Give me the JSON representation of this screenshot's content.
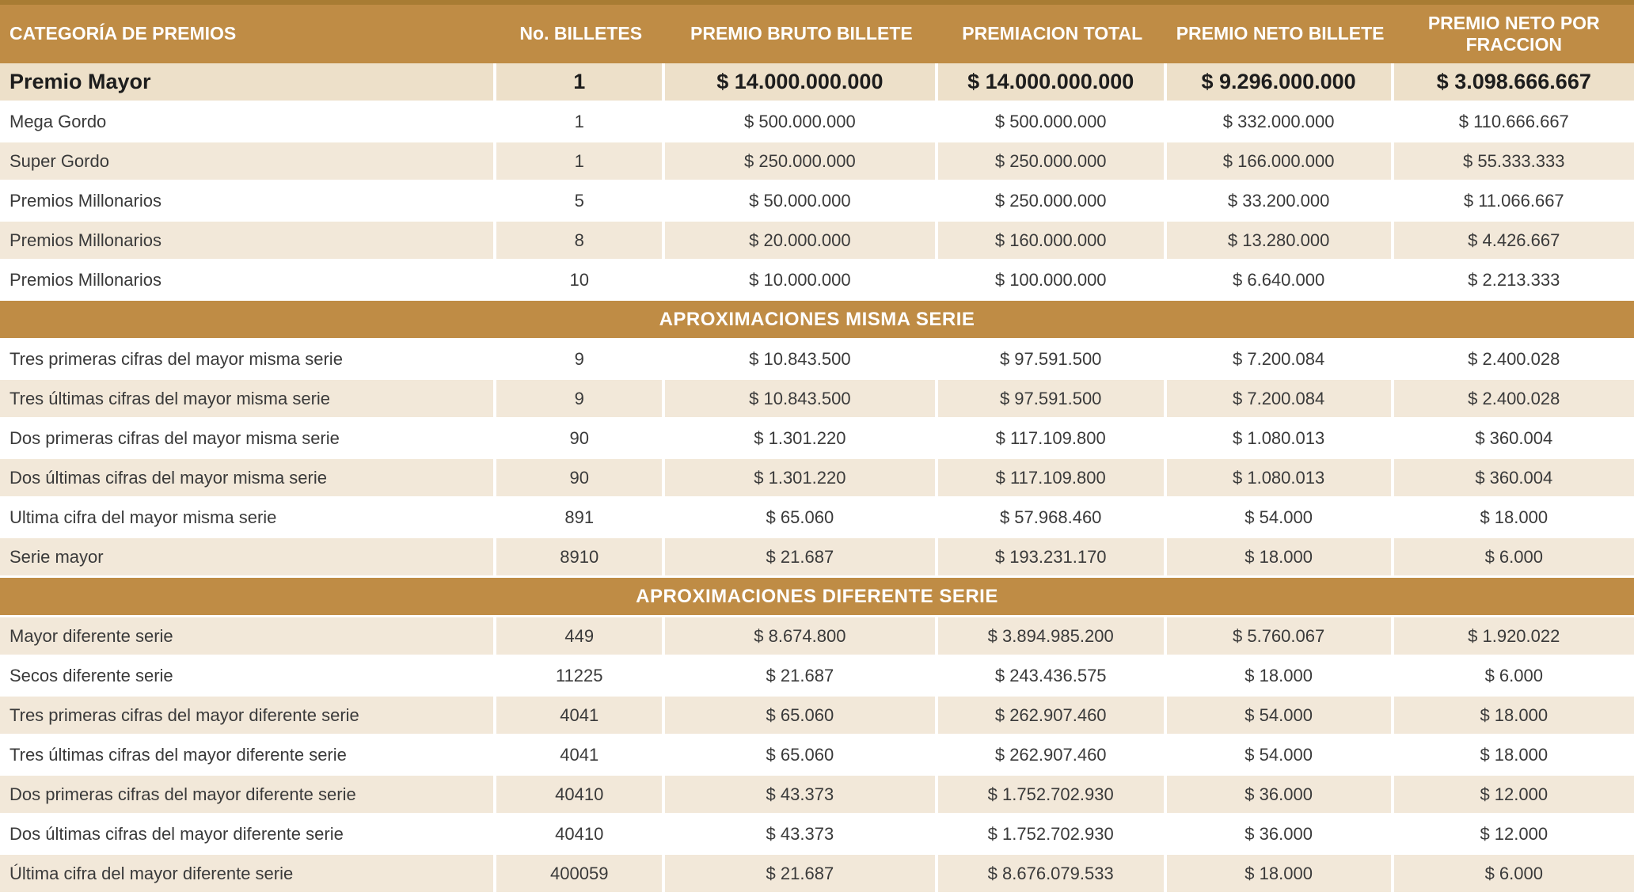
{
  "colors": {
    "gold": "#BF8C45",
    "gold_dark_edge": "#A87C33",
    "cream_row": "#F2E8D9",
    "highlight_row": "#EDE0C9",
    "white_row": "#FFFFFF",
    "header_text": "#FFFFFF",
    "body_text": "#3A3A3A"
  },
  "table": {
    "columns": [
      {
        "label": "CATEGORÍA DE PREMIOS"
      },
      {
        "label": "No. BILLETES"
      },
      {
        "label": "PREMIO BRUTO BILLETE"
      },
      {
        "label": "PREMIACION TOTAL"
      },
      {
        "label": "PREMIO NETO BILLETE"
      },
      {
        "label": "PREMIO NETO POR FRACCION"
      }
    ],
    "sections": [
      {
        "rows": [
          {
            "highlight": true,
            "cells": [
              "Premio Mayor",
              "1",
              "$ 14.000.000.000",
              "$ 14.000.000.000",
              "$ 9.296.000.000",
              "$ 3.098.666.667"
            ]
          },
          {
            "cells": [
              "Mega Gordo",
              "1",
              "$ 500.000.000",
              "$ 500.000.000",
              "$ 332.000.000",
              "$ 110.666.667"
            ]
          },
          {
            "cells": [
              "Super Gordo",
              "1",
              "$ 250.000.000",
              "$ 250.000.000",
              "$ 166.000.000",
              "$ 55.333.333"
            ]
          },
          {
            "cells": [
              "Premios Millonarios",
              "5",
              "$ 50.000.000",
              "$ 250.000.000",
              "$ 33.200.000",
              "$ 11.066.667"
            ]
          },
          {
            "cells": [
              "Premios Millonarios",
              "8",
              "$ 20.000.000",
              "$ 160.000.000",
              "$ 13.280.000",
              "$ 4.426.667"
            ]
          },
          {
            "cells": [
              "Premios Millonarios",
              "10",
              "$ 10.000.000",
              "$ 100.000.000",
              "$ 6.640.000",
              "$ 2.213.333"
            ]
          }
        ]
      },
      {
        "title": "APROXIMACIONES MISMA SERIE",
        "rows": [
          {
            "cells": [
              "Tres primeras cifras del mayor misma serie",
              "9",
              "$ 10.843.500",
              "$ 97.591.500",
              "$ 7.200.084",
              "$ 2.400.028"
            ]
          },
          {
            "cells": [
              "Tres últimas cifras del mayor misma serie",
              "9",
              "$ 10.843.500",
              "$ 97.591.500",
              "$ 7.200.084",
              "$ 2.400.028"
            ]
          },
          {
            "cells": [
              "Dos primeras cifras del mayor misma serie",
              "90",
              "$ 1.301.220",
              "$ 117.109.800",
              "$ 1.080.013",
              "$ 360.004"
            ]
          },
          {
            "cells": [
              "Dos últimas cifras del mayor misma serie",
              "90",
              "$ 1.301.220",
              "$ 117.109.800",
              "$ 1.080.013",
              "$ 360.004"
            ]
          },
          {
            "cells": [
              "Ultima cifra del mayor misma serie",
              "891",
              "$ 65.060",
              "$ 57.968.460",
              "$ 54.000",
              "$ 18.000"
            ]
          },
          {
            "cells": [
              "Serie mayor",
              "8910",
              "$ 21.687",
              "$ 193.231.170",
              "$ 18.000",
              "$ 6.000"
            ]
          }
        ]
      },
      {
        "title": "APROXIMACIONES DIFERENTE SERIE",
        "rows": [
          {
            "cells": [
              "Mayor diferente serie",
              "449",
              "$ 8.674.800",
              "$ 3.894.985.200",
              "$ 5.760.067",
              "$ 1.920.022"
            ]
          },
          {
            "cells": [
              "Secos diferente serie",
              "11225",
              "$ 21.687",
              "$ 243.436.575",
              "$ 18.000",
              "$ 6.000"
            ]
          },
          {
            "cells": [
              "Tres primeras cifras del mayor diferente serie",
              "4041",
              "$ 65.060",
              "$ 262.907.460",
              "$ 54.000",
              "$ 18.000"
            ]
          },
          {
            "cells": [
              "Tres últimas cifras del mayor diferente serie",
              "4041",
              "$ 65.060",
              "$ 262.907.460",
              "$ 54.000",
              "$ 18.000"
            ]
          },
          {
            "cells": [
              "Dos primeras cifras del mayor diferente serie",
              "40410",
              "$ 43.373",
              "$ 1.752.702.930",
              "$ 36.000",
              "$ 12.000"
            ]
          },
          {
            "cells": [
              "Dos últimas cifras del mayor diferente serie",
              "40410",
              "$ 43.373",
              "$ 1.752.702.930",
              "$ 36.000",
              "$ 12.000"
            ]
          },
          {
            "cells": [
              "Última cifra del mayor diferente serie",
              "400059",
              "$ 21.687",
              "$ 8.676.079.533",
              "$ 18.000",
              "$ 6.000"
            ]
          }
        ]
      }
    ]
  }
}
